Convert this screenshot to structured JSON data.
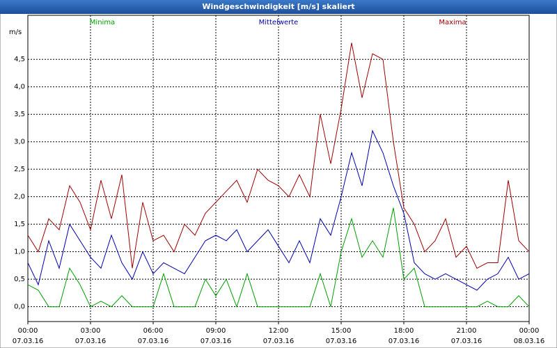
{
  "chart_data": {
    "type": "line",
    "title": "Windgeschwindigkeit [m/s] skaliert",
    "y_label": "m/s",
    "x": [
      0,
      0.5,
      1,
      1.5,
      2,
      2.5,
      3,
      3.5,
      4,
      4.5,
      5,
      5.5,
      6,
      6.5,
      7,
      7.5,
      8,
      8.5,
      9,
      9.5,
      10,
      10.5,
      11,
      11.5,
      12,
      12.5,
      13,
      13.5,
      14,
      14.5,
      15,
      15.5,
      16,
      16.5,
      17,
      17.5,
      18,
      18.5,
      19,
      19.5,
      20,
      20.5,
      21,
      21.5,
      22,
      22.5,
      23,
      23.5,
      24
    ],
    "series": [
      {
        "name": "Minima",
        "color": "#00a000",
        "values": [
          0.4,
          0.3,
          0,
          0,
          0.7,
          0.4,
          0,
          0.1,
          0,
          0.2,
          0,
          0,
          0,
          0.6,
          0,
          0,
          0,
          0.5,
          0.2,
          0.5,
          0,
          0.6,
          0,
          0,
          0,
          0,
          0,
          0,
          0.6,
          0,
          1.0,
          1.6,
          0.9,
          1.2,
          0.9,
          1.8,
          0.5,
          0.7,
          0,
          0,
          0,
          0,
          0,
          0,
          0.1,
          0,
          0,
          0.2,
          0
        ]
      },
      {
        "name": "Mittelwerte",
        "color": "#0000b0",
        "values": [
          0.8,
          0.4,
          1.2,
          0.7,
          1.5,
          1.2,
          0.9,
          0.7,
          1.3,
          0.8,
          0.5,
          1.0,
          0.6,
          0.8,
          0.7,
          0.6,
          0.9,
          1.2,
          1.3,
          1.2,
          1.4,
          1.0,
          1.2,
          1.4,
          1.1,
          0.8,
          1.2,
          0.8,
          1.6,
          1.3,
          2.0,
          2.8,
          2.2,
          3.2,
          2.8,
          2.2,
          1.7,
          0.8,
          0.6,
          0.5,
          0.6,
          0.5,
          0.4,
          0.3,
          0.5,
          0.6,
          0.9,
          0.5,
          0.6
        ]
      },
      {
        "name": "Maxima",
        "color": "#a00000",
        "values": [
          1.3,
          1.0,
          1.6,
          1.4,
          2.2,
          1.9,
          1.4,
          2.3,
          1.6,
          2.4,
          0.7,
          1.9,
          1.2,
          1.3,
          1.0,
          1.5,
          1.3,
          1.7,
          1.9,
          2.1,
          2.3,
          1.9,
          2.5,
          2.3,
          2.2,
          2.0,
          2.4,
          2.0,
          3.5,
          2.6,
          3.6,
          4.8,
          3.8,
          4.6,
          4.5,
          3.0,
          1.8,
          1.5,
          1.0,
          1.2,
          1.6,
          0.9,
          1.1,
          0.7,
          0.8,
          0.8,
          2.3,
          1.2,
          1.0
        ]
      }
    ],
    "xlim": [
      0,
      24
    ],
    "xticks": [
      {
        "value": 0,
        "label": "00:00"
      },
      {
        "value": 3,
        "label": "03:00"
      },
      {
        "value": 6,
        "label": "06:00"
      },
      {
        "value": 9,
        "label": "09:00"
      },
      {
        "value": 12,
        "label": "12:00"
      },
      {
        "value": 15,
        "label": "15:00"
      },
      {
        "value": 18,
        "label": "18:00"
      },
      {
        "value": 21,
        "label": "21:00"
      },
      {
        "value": 24,
        "label": "00:00"
      }
    ],
    "xtick_dates": [
      "07.03.16",
      "07.03.16",
      "07.03.16",
      "07.03.16",
      "07.03.16",
      "07.03.16",
      "07.03.16",
      "07.03.16",
      "08.03.16"
    ],
    "ylim": [
      -0.27,
      5.3
    ],
    "yticks": [
      {
        "value": 0,
        "label": "0,0"
      },
      {
        "value": 0.5,
        "label": "0,5"
      },
      {
        "value": 1,
        "label": "1,0"
      },
      {
        "value": 1.5,
        "label": "1,5"
      },
      {
        "value": 2,
        "label": "2,0"
      },
      {
        "value": 2.5,
        "label": "2,5"
      },
      {
        "value": 3,
        "label": "3,0"
      },
      {
        "value": 3.5,
        "label": "3,5"
      },
      {
        "value": 4,
        "label": "4,0"
      },
      {
        "value": 4.5,
        "label": "4,5"
      }
    ],
    "grid": true
  }
}
